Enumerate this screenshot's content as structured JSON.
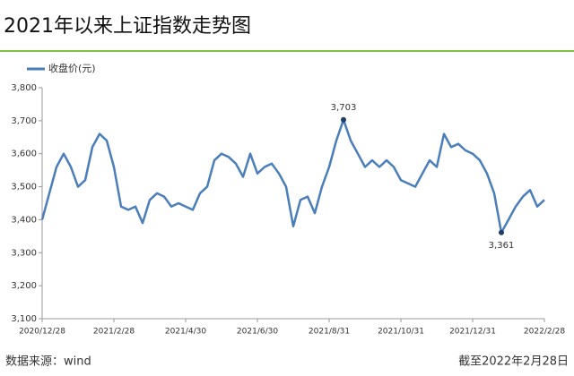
{
  "chart_data": {
    "type": "line",
    "title": "2021年以来上证指数走势图",
    "source": "数据来源：wind",
    "note": "截至2022年2月28日",
    "categories": [
      "2020/12/28",
      null,
      null,
      null,
      null,
      null,
      null,
      null,
      null,
      null,
      "2021/2/28",
      null,
      null,
      null,
      null,
      null,
      null,
      null,
      null,
      null,
      "2021/4/30",
      null,
      null,
      null,
      null,
      null,
      null,
      null,
      null,
      null,
      "2021/6/30",
      null,
      null,
      null,
      null,
      null,
      null,
      null,
      null,
      null,
      "2021/8/31",
      null,
      null,
      null,
      null,
      null,
      null,
      null,
      null,
      null,
      "2021/10/31",
      null,
      null,
      null,
      null,
      null,
      null,
      null,
      null,
      null,
      "2021/12/31",
      null,
      null,
      null,
      null,
      null,
      null,
      null,
      null,
      null,
      "2022/2/28"
    ],
    "series": [
      {
        "name": "收盘价(元)",
        "color": "#4a7ebb",
        "values": [
          3400,
          3480,
          3560,
          3600,
          3560,
          3500,
          3520,
          3620,
          3660,
          3640,
          3560,
          3440,
          3430,
          3440,
          3390,
          3460,
          3480,
          3470,
          3440,
          3450,
          3440,
          3430,
          3480,
          3500,
          3580,
          3600,
          3590,
          3570,
          3530,
          3600,
          3540,
          3560,
          3570,
          3540,
          3500,
          3380,
          3460,
          3470,
          3420,
          3500,
          3560,
          3640,
          3703,
          3640,
          3600,
          3560,
          3580,
          3560,
          3580,
          3560,
          3520,
          3510,
          3500,
          3540,
          3580,
          3560,
          3660,
          3620,
          3630,
          3610,
          3600,
          3580,
          3540,
          3480,
          3361,
          3400,
          3440,
          3470,
          3490,
          3440,
          3460
        ],
        "value_labels": [
          null,
          null,
          null,
          null,
          null,
          null,
          null,
          null,
          null,
          null,
          null,
          null,
          null,
          null,
          null,
          null,
          null,
          null,
          null,
          null,
          null,
          null,
          null,
          null,
          null,
          null,
          null,
          null,
          null,
          null,
          null,
          null,
          null,
          null,
          null,
          null,
          null,
          null,
          null,
          null,
          null,
          null,
          "3,703",
          null,
          null,
          null,
          null,
          null,
          null,
          null,
          null,
          null,
          null,
          null,
          null,
          null,
          null,
          null,
          null,
          null,
          null,
          null,
          null,
          null,
          "3,361",
          null,
          null,
          null,
          null,
          null,
          null
        ]
      }
    ],
    "ylim": [
      3100,
      3800
    ],
    "yticks": [
      {
        "value": 3100,
        "label": "3,100"
      },
      {
        "value": 3200,
        "label": "3,200"
      },
      {
        "value": 3300,
        "label": "3,300"
      },
      {
        "value": 3400,
        "label": "3,400"
      },
      {
        "value": 3500,
        "label": "3,500"
      },
      {
        "value": 3600,
        "label": "3,600"
      },
      {
        "value": 3700,
        "label": "3,700"
      },
      {
        "value": 3800,
        "label": "3,800"
      }
    ]
  }
}
